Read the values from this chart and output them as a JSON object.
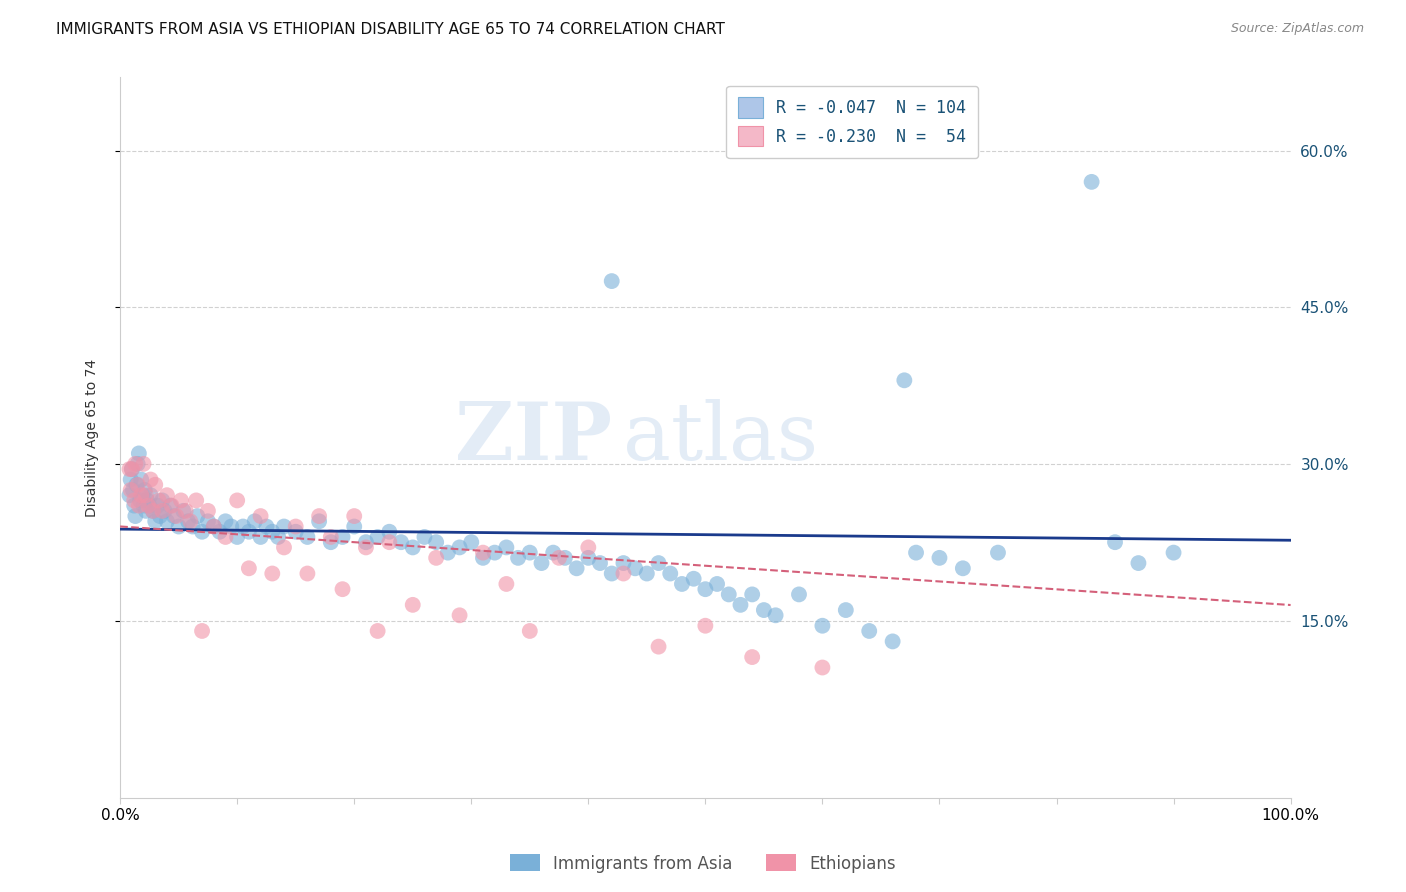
{
  "title": "IMMIGRANTS FROM ASIA VS ETHIOPIAN DISABILITY AGE 65 TO 74 CORRELATION CHART",
  "source": "Source: ZipAtlas.com",
  "ylabel": "Disability Age 65 to 74",
  "xlim": [
    0.0,
    1.0
  ],
  "ylim": [
    -0.02,
    0.67
  ],
  "legend_entries": [
    {
      "label": "R = -0.047  N = 104",
      "color": "#aec6e8"
    },
    {
      "label": "R = -0.230  N =  54",
      "color": "#f4b8c8"
    }
  ],
  "watermark_zip": "ZIP",
  "watermark_atlas": "atlas",
  "asia_scatter_color": "#7ab0d8",
  "eth_scatter_color": "#f093a8",
  "asia_line_color": "#1a3a8c",
  "eth_line_color": "#d4607a",
  "asia_R": -0.047,
  "asia_N": 104,
  "eth_R": -0.23,
  "eth_N": 54,
  "grid_color": "#cccccc",
  "background_color": "#ffffff",
  "title_fontsize": 11,
  "axis_label_fontsize": 10,
  "ytick_vals": [
    0.15,
    0.3,
    0.45,
    0.6
  ],
  "ytick_labels": [
    "15.0%",
    "30.0%",
    "45.0%",
    "60.0%"
  ],
  "asia_x": [
    0.008,
    0.009,
    0.01,
    0.011,
    0.012,
    0.013,
    0.014,
    0.015,
    0.016,
    0.017,
    0.018,
    0.019,
    0.02,
    0.021,
    0.022,
    0.023,
    0.025,
    0.026,
    0.028,
    0.03,
    0.032,
    0.034,
    0.036,
    0.038,
    0.04,
    0.043,
    0.046,
    0.05,
    0.054,
    0.058,
    0.062,
    0.066,
    0.07,
    0.075,
    0.08,
    0.085,
    0.09,
    0.095,
    0.1,
    0.105,
    0.11,
    0.115,
    0.12,
    0.125,
    0.13,
    0.135,
    0.14,
    0.15,
    0.16,
    0.17,
    0.18,
    0.19,
    0.2,
    0.21,
    0.22,
    0.23,
    0.24,
    0.25,
    0.26,
    0.27,
    0.28,
    0.29,
    0.3,
    0.31,
    0.32,
    0.33,
    0.34,
    0.35,
    0.36,
    0.37,
    0.38,
    0.39,
    0.4,
    0.41,
    0.42,
    0.43,
    0.44,
    0.45,
    0.46,
    0.47,
    0.48,
    0.49,
    0.5,
    0.51,
    0.52,
    0.53,
    0.54,
    0.55,
    0.56,
    0.58,
    0.6,
    0.62,
    0.64,
    0.66,
    0.68,
    0.7,
    0.72,
    0.75,
    0.83,
    0.85,
    0.87,
    0.9,
    0.42,
    0.67
  ],
  "asia_y": [
    0.27,
    0.285,
    0.295,
    0.275,
    0.26,
    0.25,
    0.28,
    0.3,
    0.31,
    0.265,
    0.285,
    0.27,
    0.26,
    0.275,
    0.255,
    0.265,
    0.26,
    0.27,
    0.255,
    0.245,
    0.26,
    0.25,
    0.265,
    0.255,
    0.245,
    0.26,
    0.25,
    0.24,
    0.255,
    0.245,
    0.24,
    0.25,
    0.235,
    0.245,
    0.24,
    0.235,
    0.245,
    0.24,
    0.23,
    0.24,
    0.235,
    0.245,
    0.23,
    0.24,
    0.235,
    0.23,
    0.24,
    0.235,
    0.23,
    0.245,
    0.225,
    0.23,
    0.24,
    0.225,
    0.23,
    0.235,
    0.225,
    0.22,
    0.23,
    0.225,
    0.215,
    0.22,
    0.225,
    0.21,
    0.215,
    0.22,
    0.21,
    0.215,
    0.205,
    0.215,
    0.21,
    0.2,
    0.21,
    0.205,
    0.195,
    0.205,
    0.2,
    0.195,
    0.205,
    0.195,
    0.185,
    0.19,
    0.18,
    0.185,
    0.175,
    0.165,
    0.175,
    0.16,
    0.155,
    0.175,
    0.145,
    0.16,
    0.14,
    0.13,
    0.215,
    0.21,
    0.2,
    0.215,
    0.57,
    0.225,
    0.205,
    0.215,
    0.475,
    0.38
  ],
  "eth_x": [
    0.008,
    0.009,
    0.01,
    0.012,
    0.013,
    0.015,
    0.016,
    0.018,
    0.02,
    0.022,
    0.024,
    0.026,
    0.028,
    0.03,
    0.033,
    0.036,
    0.04,
    0.044,
    0.048,
    0.052,
    0.056,
    0.06,
    0.065,
    0.07,
    0.075,
    0.08,
    0.09,
    0.1,
    0.11,
    0.12,
    0.13,
    0.14,
    0.15,
    0.16,
    0.17,
    0.18,
    0.19,
    0.2,
    0.21,
    0.22,
    0.23,
    0.25,
    0.27,
    0.29,
    0.31,
    0.33,
    0.35,
    0.375,
    0.4,
    0.43,
    0.46,
    0.5,
    0.54,
    0.6
  ],
  "eth_y": [
    0.295,
    0.275,
    0.295,
    0.265,
    0.3,
    0.28,
    0.26,
    0.27,
    0.3,
    0.27,
    0.26,
    0.285,
    0.255,
    0.28,
    0.265,
    0.255,
    0.27,
    0.26,
    0.25,
    0.265,
    0.255,
    0.245,
    0.265,
    0.14,
    0.255,
    0.24,
    0.23,
    0.265,
    0.2,
    0.25,
    0.195,
    0.22,
    0.24,
    0.195,
    0.25,
    0.23,
    0.18,
    0.25,
    0.22,
    0.14,
    0.225,
    0.165,
    0.21,
    0.155,
    0.215,
    0.185,
    0.14,
    0.21,
    0.22,
    0.195,
    0.125,
    0.145,
    0.115,
    0.105
  ]
}
